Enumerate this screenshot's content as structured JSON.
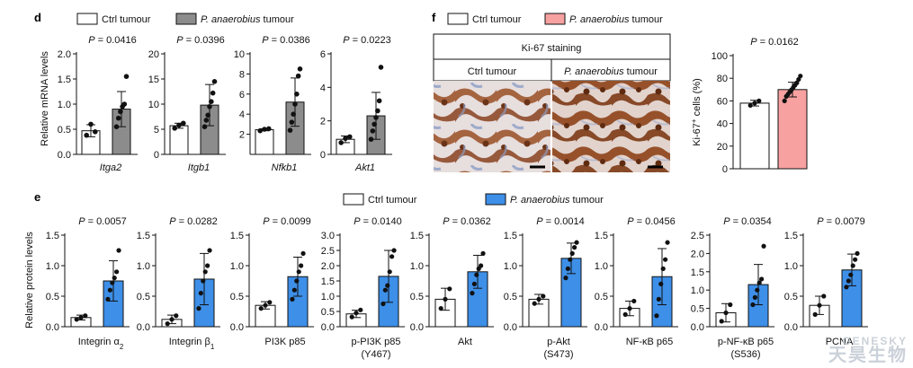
{
  "panel_d": {
    "letter": "d",
    "legend": {
      "ctrl": "Ctrl tumour",
      "treat_prefix": "P. anaerobius",
      "treat_suffix": " tumour"
    },
    "ylabel": "Relative mRNA levels",
    "colors": {
      "ctrl": "#ffffff",
      "treat": "#8c8c8c"
    }
  },
  "panel_e": {
    "letter": "e",
    "legend": {
      "ctrl": "Ctrl tumour",
      "treat_prefix": "P. anaerobius",
      "treat_suffix": " tumour"
    },
    "ylabel": "Relative protein levels",
    "colors": {
      "ctrl": "#ffffff",
      "treat": "#3d8fe8"
    }
  },
  "panel_f": {
    "letter": "f",
    "legend": {
      "ctrl": "Ctrl tumour",
      "treat_prefix": "P. anaerobius",
      "treat_suffix": " tumour"
    },
    "staining_title": "Ki-67 staining",
    "col_ctrl": "Ctrl tumour",
    "col_treat_prefix": "P. anaerobius",
    "col_treat_suffix": " tumour",
    "colors": {
      "ctrl": "#ffffff",
      "treat": "#f7a1a1"
    }
  },
  "watermark": {
    "line1": "GENESKY",
    "line2": "天昊生物"
  },
  "chart_data": [
    {
      "type": "bar",
      "panel": "d",
      "gene": "Itga2",
      "italic": true,
      "p": "P = 0.0416",
      "ylim": [
        0,
        2.0
      ],
      "ticks": [
        0,
        0.5,
        1.0,
        1.5,
        2.0
      ],
      "categories": [
        "Ctrl tumour",
        "P. anaerobius tumour"
      ],
      "series": [
        {
          "name": "Ctrl tumour",
          "mean": 0.47,
          "sd": 0.12,
          "points": [
            0.38,
            0.6,
            0.45
          ]
        },
        {
          "name": "P. anaerobius tumour",
          "mean": 0.9,
          "sd": 0.35,
          "points": [
            0.55,
            0.72,
            0.85,
            0.95,
            1.0,
            1.55
          ]
        }
      ]
    },
    {
      "type": "bar",
      "panel": "d",
      "gene": "Itgb1",
      "italic": true,
      "p": "P = 0.0396",
      "ylim": [
        0,
        20
      ],
      "ticks": [
        0,
        5,
        10,
        15,
        20
      ],
      "categories": [
        "Ctrl tumour",
        "P. anaerobius tumour"
      ],
      "series": [
        {
          "name": "Ctrl tumour",
          "mean": 5.7,
          "sd": 0.5,
          "points": [
            5.2,
            5.8,
            6.2
          ]
        },
        {
          "name": "P. anaerobius tumour",
          "mean": 9.8,
          "sd": 4.1,
          "points": [
            5.5,
            6.8,
            7.8,
            9.5,
            10.5,
            12.2,
            14.5
          ]
        }
      ]
    },
    {
      "type": "bar",
      "panel": "d",
      "gene": "Nfkb1",
      "italic": true,
      "p": "P = 0.0386",
      "ylim": [
        0,
        10
      ],
      "ticks": [
        2,
        4,
        6,
        8,
        10
      ],
      "categories": [
        "Ctrl tumour",
        "P. anaerobius tumour"
      ],
      "series": [
        {
          "name": "Ctrl tumour",
          "mean": 2.45,
          "sd": 0.1,
          "points": [
            2.35,
            2.5,
            2.55
          ]
        },
        {
          "name": "P. anaerobius tumour",
          "mean": 5.2,
          "sd": 2.4,
          "points": [
            2.4,
            3.2,
            4.0,
            5.0,
            6.0,
            7.8,
            8.5
          ]
        }
      ]
    },
    {
      "type": "bar",
      "panel": "d",
      "gene": "Akt1",
      "italic": true,
      "p": "P = 0.0223",
      "ylim": [
        0,
        6
      ],
      "ticks": [
        0,
        2,
        4,
        6
      ],
      "categories": [
        "Ctrl tumour",
        "P. anaerobius tumour"
      ],
      "series": [
        {
          "name": "Ctrl tumour",
          "mean": 0.9,
          "sd": 0.2,
          "points": [
            0.7,
            0.95,
            1.05
          ]
        },
        {
          "name": "P. anaerobius tumour",
          "mean": 2.3,
          "sd": 1.4,
          "points": [
            0.9,
            1.4,
            1.8,
            2.2,
            2.6,
            3.2,
            5.2
          ]
        }
      ]
    },
    {
      "type": "bar",
      "panel": "e",
      "protein": "Integrin α2",
      "label_main": "Integrin α",
      "label_sub": "2",
      "p": "P = 0.0057",
      "ylim": [
        0,
        1.5
      ],
      "ticks": [
        0,
        0.5,
        1.0,
        1.5
      ],
      "categories": [
        "Ctrl tumour",
        "P. anaerobius tumour"
      ],
      "series": [
        {
          "name": "Ctrl tumour",
          "mean": 0.15,
          "sd": 0.04,
          "points": [
            0.12,
            0.15,
            0.18
          ]
        },
        {
          "name": "P. anaerobius tumour",
          "mean": 0.75,
          "sd": 0.33,
          "points": [
            0.45,
            0.6,
            0.72,
            0.8,
            0.9,
            1.25
          ]
        }
      ]
    },
    {
      "type": "bar",
      "panel": "e",
      "protein": "Integrin β1",
      "label_main": "Integrin β",
      "label_sub": "1",
      "p": "P = 0.0282",
      "ylim": [
        0,
        1.5
      ],
      "ticks": [
        0,
        0.5,
        1.0,
        1.5
      ],
      "categories": [
        "Ctrl tumour",
        "P. anaerobius tumour"
      ],
      "series": [
        {
          "name": "Ctrl tumour",
          "mean": 0.12,
          "sd": 0.07,
          "points": [
            0.05,
            0.12,
            0.18
          ]
        },
        {
          "name": "P. anaerobius tumour",
          "mean": 0.78,
          "sd": 0.42,
          "points": [
            0.3,
            0.55,
            0.75,
            0.9,
            1.0,
            1.25
          ]
        }
      ]
    },
    {
      "type": "bar",
      "panel": "e",
      "protein": "PI3K p85",
      "label_main": "PI3K p85",
      "label_sub": "",
      "p": "P = 0.0099",
      "ylim": [
        0,
        1.5
      ],
      "ticks": [
        0,
        0.5,
        1.0,
        1.5
      ],
      "categories": [
        "Ctrl tumour",
        "P. anaerobius tumour"
      ],
      "series": [
        {
          "name": "Ctrl tumour",
          "mean": 0.35,
          "sd": 0.06,
          "points": [
            0.3,
            0.35,
            0.4
          ]
        },
        {
          "name": "P. anaerobius tumour",
          "mean": 0.82,
          "sd": 0.32,
          "points": [
            0.45,
            0.6,
            0.75,
            0.9,
            1.0,
            1.2
          ]
        }
      ]
    },
    {
      "type": "bar",
      "panel": "e",
      "protein": "p-PI3K p85 (Y467)",
      "label_main": "p-PI3K p85",
      "label_sub": "",
      "label_line2": "(Y467)",
      "p": "P = 0.0140",
      "ylim": [
        0,
        3
      ],
      "ticks": [
        0,
        0.5,
        1.0,
        1.5,
        2.0,
        2.5,
        3.0
      ],
      "categories": [
        "Ctrl tumour",
        "P. anaerobius tumour"
      ],
      "series": [
        {
          "name": "Ctrl tumour",
          "mean": 0.42,
          "sd": 0.12,
          "points": [
            0.32,
            0.45,
            0.55
          ]
        },
        {
          "name": "P. anaerobius tumour",
          "mean": 1.65,
          "sd": 0.85,
          "points": [
            0.75,
            1.2,
            1.35,
            1.8,
            2.3,
            2.5
          ]
        }
      ]
    },
    {
      "type": "bar",
      "panel": "e",
      "protein": "Akt",
      "label_main": "Akt",
      "label_sub": "",
      "p": "P = 0.0362",
      "ylim": [
        0,
        1.5
      ],
      "ticks": [
        0,
        0.5,
        1.0,
        1.5
      ],
      "categories": [
        "Ctrl tumour",
        "P. anaerobius tumour"
      ],
      "series": [
        {
          "name": "Ctrl tumour",
          "mean": 0.45,
          "sd": 0.18,
          "points": [
            0.3,
            0.45,
            0.62
          ]
        },
        {
          "name": "P. anaerobius tumour",
          "mean": 0.9,
          "sd": 0.27,
          "points": [
            0.55,
            0.7,
            0.85,
            0.95,
            1.0,
            1.2
          ]
        }
      ]
    },
    {
      "type": "bar",
      "panel": "e",
      "protein": "p-Akt (S473)",
      "label_main": "p-Akt",
      "label_sub": "",
      "label_line2": "(S473)",
      "p": "P = 0.0014",
      "ylim": [
        0,
        1.5
      ],
      "ticks": [
        0,
        0.5,
        1.0,
        1.5
      ],
      "categories": [
        "Ctrl tumour",
        "P. anaerobius tumour"
      ],
      "series": [
        {
          "name": "Ctrl tumour",
          "mean": 0.45,
          "sd": 0.08,
          "points": [
            0.38,
            0.45,
            0.5
          ]
        },
        {
          "name": "P. anaerobius tumour",
          "mean": 1.12,
          "sd": 0.25,
          "points": [
            0.8,
            0.95,
            1.1,
            1.2,
            1.3,
            1.38
          ]
        }
      ]
    },
    {
      "type": "bar",
      "panel": "e",
      "protein": "NF-κB p65",
      "label_main": "NF-κB p65",
      "label_sub": "",
      "p": "P = 0.0456",
      "ylim": [
        0,
        1.5
      ],
      "ticks": [
        0,
        0.5,
        1.0,
        1.5
      ],
      "categories": [
        "Ctrl tumour",
        "P. anaerobius tumour"
      ],
      "series": [
        {
          "name": "Ctrl tumour",
          "mean": 0.3,
          "sd": 0.12,
          "points": [
            0.2,
            0.3,
            0.42
          ]
        },
        {
          "name": "P. anaerobius tumour",
          "mean": 0.82,
          "sd": 0.46,
          "points": [
            0.18,
            0.45,
            0.7,
            0.95,
            1.1,
            1.38
          ]
        }
      ]
    },
    {
      "type": "bar",
      "panel": "e",
      "protein": "p-NF-κB p65 (S536)",
      "label_main": "p-NF-κB p65",
      "label_sub": "",
      "label_line2": "(S536)",
      "p": "P = 0.0354",
      "ylim": [
        0,
        2.5
      ],
      "ticks": [
        0,
        0.5,
        1.0,
        1.5,
        2.0,
        2.5
      ],
      "categories": [
        "Ctrl tumour",
        "P. anaerobius tumour"
      ],
      "series": [
        {
          "name": "Ctrl tumour",
          "mean": 0.38,
          "sd": 0.25,
          "points": [
            0.15,
            0.38,
            0.6
          ]
        },
        {
          "name": "P. anaerobius tumour",
          "mean": 1.15,
          "sd": 0.55,
          "points": [
            0.6,
            0.8,
            1.0,
            1.2,
            1.3,
            2.2
          ]
        }
      ]
    },
    {
      "type": "bar",
      "panel": "e",
      "protein": "PCNA",
      "label_main": "PCNA",
      "label_sub": "",
      "p": "P = 0.0079",
      "ylim": [
        0,
        1.5
      ],
      "ticks": [
        0,
        0.5,
        1.0,
        1.5
      ],
      "categories": [
        "Ctrl tumour",
        "P. anaerobius tumour"
      ],
      "series": [
        {
          "name": "Ctrl tumour",
          "mean": 0.35,
          "sd": 0.15,
          "points": [
            0.2,
            0.35,
            0.5
          ]
        },
        {
          "name": "P. anaerobius tumour",
          "mean": 0.93,
          "sd": 0.26,
          "points": [
            0.65,
            0.75,
            0.85,
            1.0,
            1.1,
            1.2
          ]
        }
      ]
    },
    {
      "type": "bar",
      "panel": "f",
      "measure": "Ki-67+ cells (%)",
      "ylabel_main": "Ki-67",
      "ylabel_sup": "+",
      "ylabel_rest": " cells (%)",
      "p": "P = 0.0162",
      "ylim": [
        0,
        100
      ],
      "ticks": [
        0,
        20,
        40,
        60,
        80,
        100
      ],
      "categories": [
        "Ctrl tumour",
        "P. anaerobius tumour"
      ],
      "series": [
        {
          "name": "Ctrl tumour",
          "mean": 58,
          "sd": 2.5,
          "points": [
            56,
            58,
            60
          ]
        },
        {
          "name": "P. anaerobius tumour",
          "mean": 70,
          "sd": 6.5,
          "points": [
            60,
            64,
            66,
            68,
            70,
            72,
            74,
            76,
            79,
            82
          ]
        }
      ]
    }
  ]
}
